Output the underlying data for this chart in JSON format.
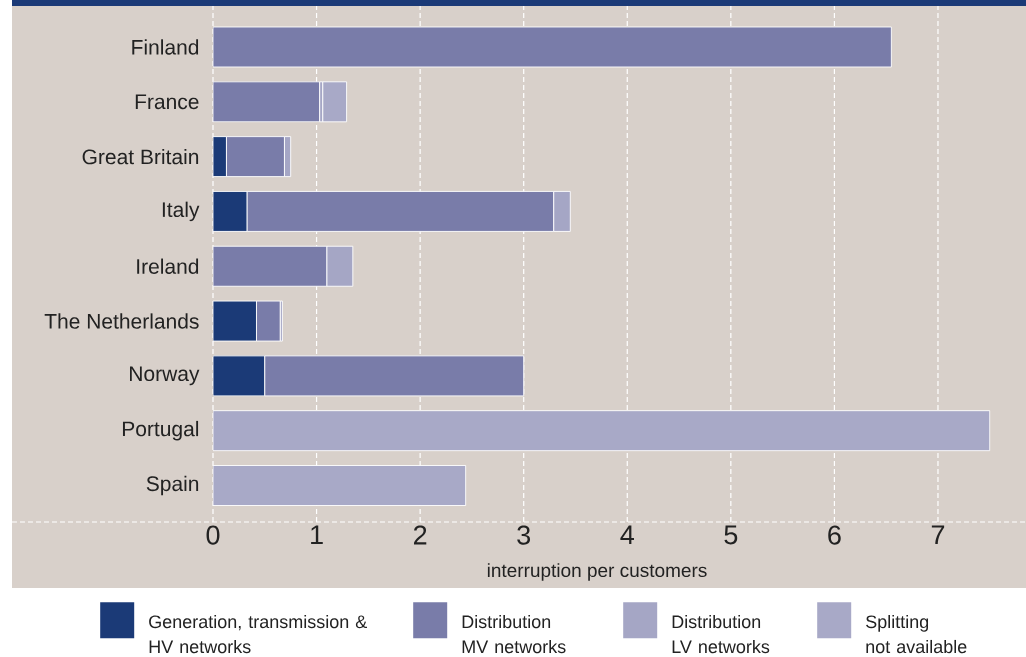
{
  "chart_data": {
    "type": "bar",
    "orientation": "horizontal",
    "stacked": true,
    "xlabel": "interruption per customers",
    "categories": [
      "Finland",
      "France",
      "Great Britain",
      "Italy",
      "Ireland",
      "The Netherlands",
      "Norway",
      "Portugal",
      "Spain"
    ],
    "series": [
      {
        "name": "Generation, transmission & HV networks",
        "color": "#1b3a77",
        "values": [
          null,
          null,
          0.13,
          0.33,
          null,
          0.42,
          0.5,
          null,
          null
        ]
      },
      {
        "name": "Distribution MV networks",
        "color": "#797ca9",
        "values": [
          6.55,
          1.03,
          0.56,
          2.96,
          1.1,
          0.23,
          2.5,
          null,
          null
        ]
      },
      {
        "name": "Distribution LV networks",
        "color": "#a5a6c5",
        "values": [
          null,
          0.03,
          0.06,
          0.16,
          0.25,
          0.02,
          null,
          null,
          null
        ]
      },
      {
        "name": "Splitting not available",
        "color": "#a8a9c7",
        "values": [
          null,
          0.23,
          null,
          null,
          null,
          null,
          null,
          7.5,
          2.44
        ]
      }
    ],
    "xlim": [
      0,
      7.85
    ],
    "xticks": [
      0,
      1,
      2,
      3,
      4,
      5,
      6,
      7
    ],
    "grid": "x",
    "legend": "bottom"
  }
}
